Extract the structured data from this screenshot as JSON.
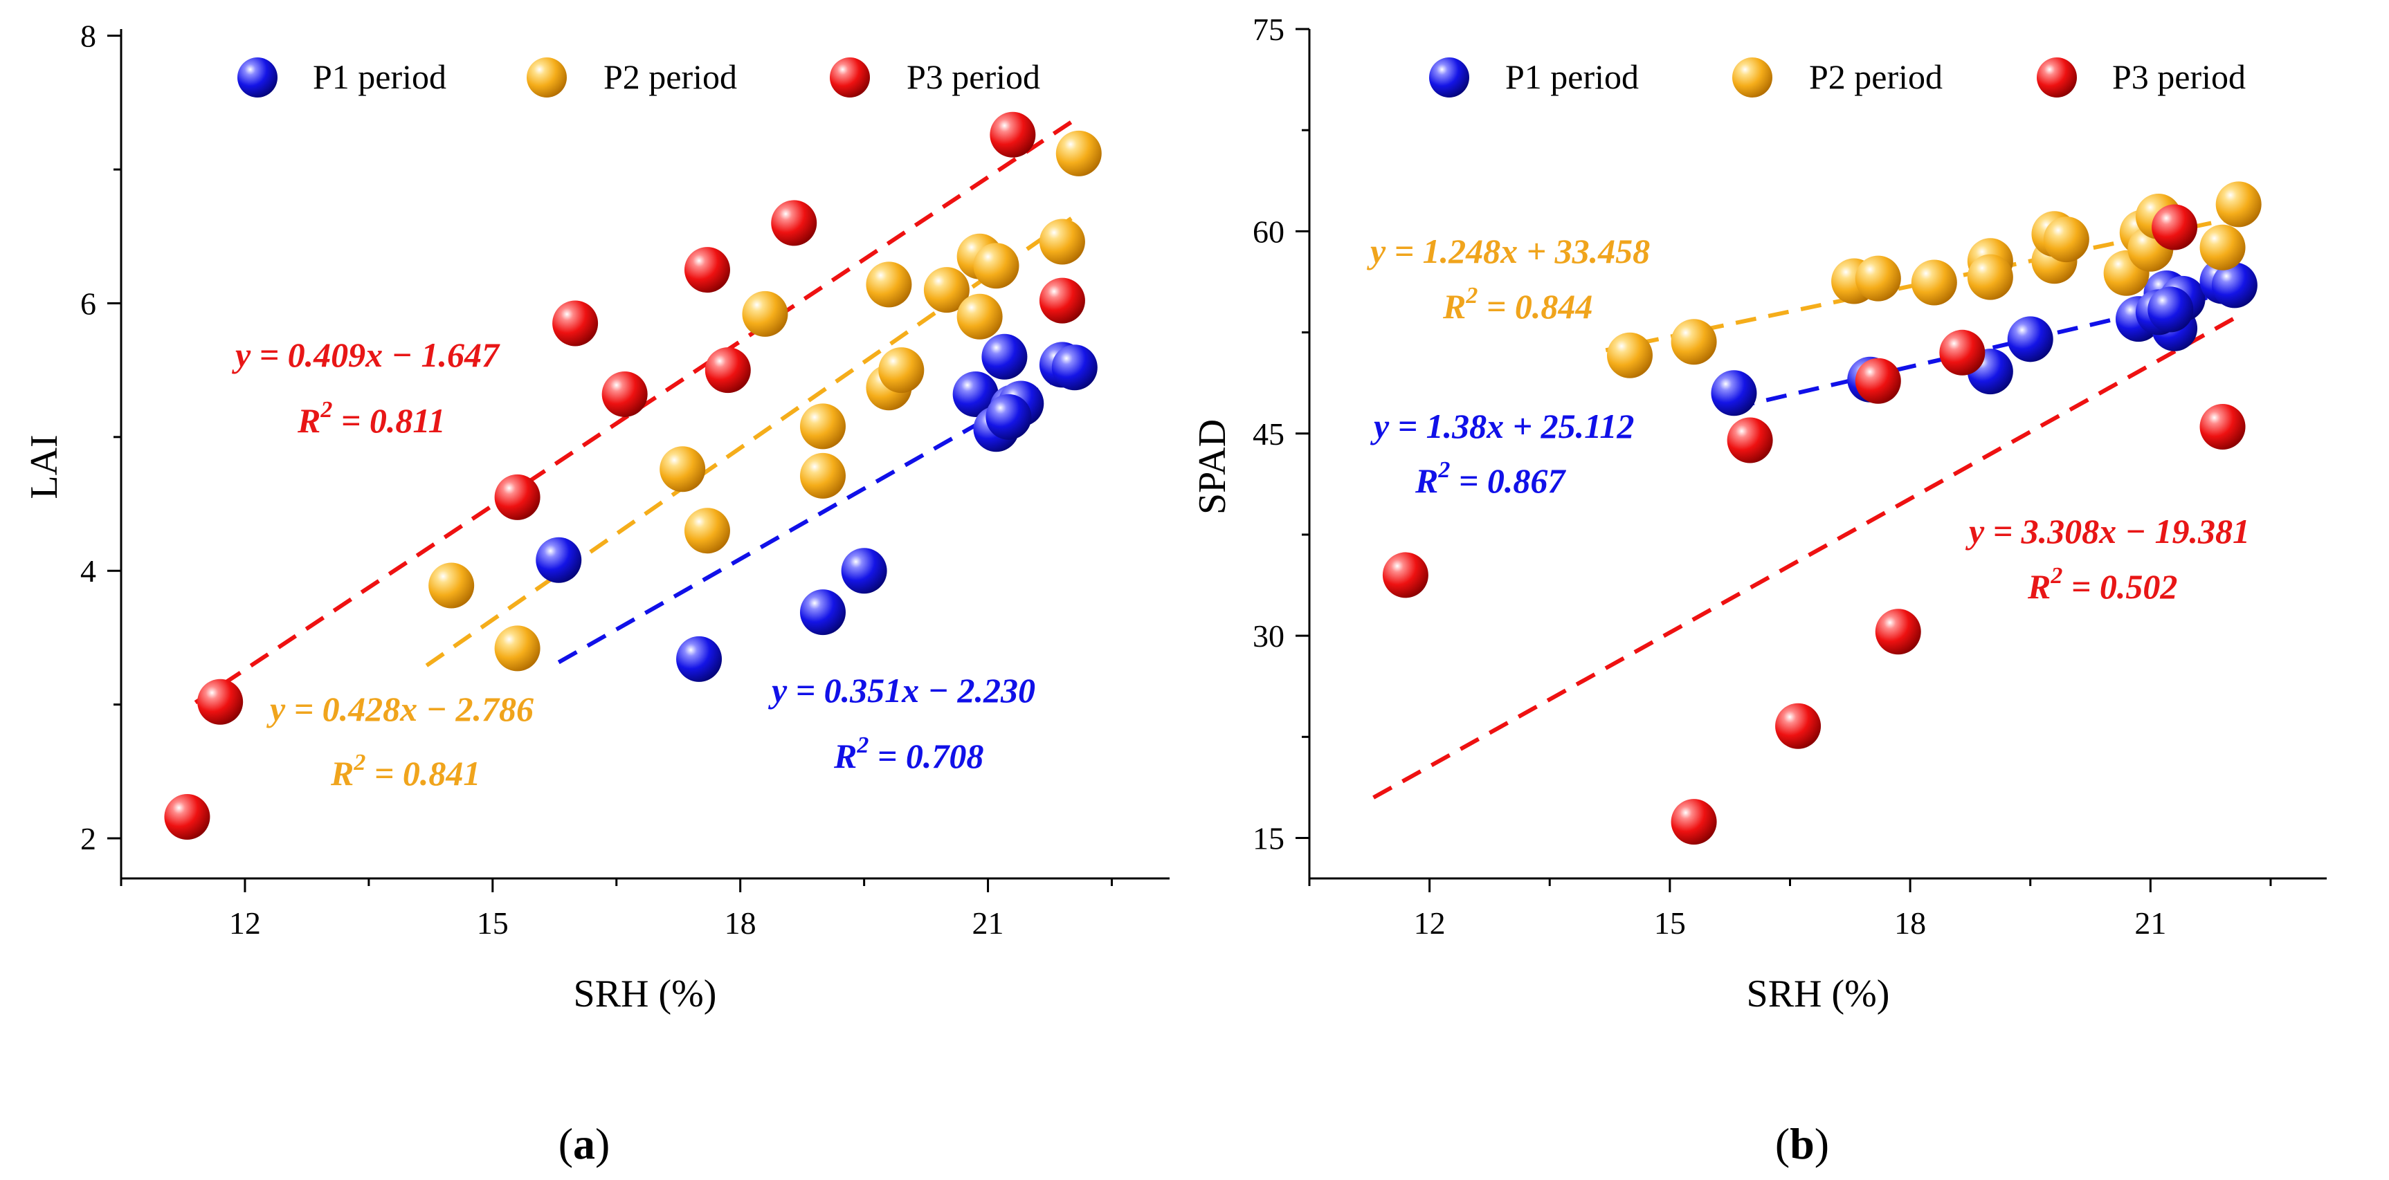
{
  "colors": {
    "P1": "#1010e8",
    "P2": "#f5ad1a",
    "P3": "#ee1111",
    "P1_text": "#1010e8",
    "P2_text": "#f0a41c",
    "P3_text": "#e81616"
  },
  "chart_data": [
    {
      "type": "scatter",
      "panel": "a",
      "panel_label": {
        "open": "(",
        "letter": "a",
        "close": ")"
      },
      "xlabel": "SRH (%)",
      "ylabel": "LAI",
      "xlim": [
        10.5,
        23.2
      ],
      "ylim": [
        1.7,
        8.05
      ],
      "xticks": [
        12,
        15,
        18,
        21
      ],
      "yticks": [
        2,
        4,
        6,
        8
      ],
      "legend": [
        "P1 period",
        "P2 period",
        "P3 period"
      ],
      "series": [
        {
          "name": "P1 period",
          "key": "P1",
          "points": [
            [
              15.8,
              4.08
            ],
            [
              17.5,
              3.34
            ],
            [
              19.0,
              3.69
            ],
            [
              19.5,
              4.0
            ],
            [
              20.85,
              5.32
            ],
            [
              21.2,
              5.6
            ],
            [
              21.3,
              5.22
            ],
            [
              21.1,
              5.06
            ],
            [
              21.4,
              5.25
            ],
            [
              21.25,
              5.15
            ],
            [
              21.9,
              5.54
            ],
            [
              22.05,
              5.52
            ]
          ],
          "fit": {
            "x": [
              15.8,
              22.0
            ],
            "slope": 0.351,
            "intercept": -2.23
          },
          "equation": "y = 0.351x − 2.230",
          "r2_prefix": "R",
          "r2_exp": "2",
          "r2_value": " = 0.708"
        },
        {
          "name": "P2 period",
          "key": "P2",
          "points": [
            [
              14.5,
              3.89
            ],
            [
              15.3,
              3.42
            ],
            [
              17.3,
              4.76
            ],
            [
              17.6,
              4.3
            ],
            [
              18.3,
              5.92
            ],
            [
              19.0,
              5.08
            ],
            [
              19.0,
              4.71
            ],
            [
              19.8,
              5.37
            ],
            [
              19.95,
              5.5
            ],
            [
              19.8,
              6.14
            ],
            [
              20.5,
              6.1
            ],
            [
              20.9,
              6.35
            ],
            [
              20.9,
              5.9
            ],
            [
              21.1,
              6.28
            ],
            [
              21.9,
              6.46
            ],
            [
              22.1,
              7.12
            ]
          ],
          "fit": {
            "x": [
              14.2,
              22.1
            ],
            "slope": 0.428,
            "intercept": -2.786
          },
          "equation": "y = 0.428x − 2.786",
          "r2_prefix": "R",
          "r2_exp": "2",
          "r2_value": " = 0.841"
        },
        {
          "name": "P3 period",
          "key": "P3",
          "points": [
            [
              11.3,
              2.16
            ],
            [
              11.7,
              3.02
            ],
            [
              15.3,
              4.55
            ],
            [
              16.0,
              5.85
            ],
            [
              16.6,
              5.32
            ],
            [
              17.6,
              6.25
            ],
            [
              17.85,
              5.5
            ],
            [
              18.65,
              6.6
            ],
            [
              21.3,
              7.26
            ],
            [
              21.9,
              6.02
            ]
          ],
          "fit": {
            "x": [
              11.4,
              22.1
            ],
            "slope": 0.409,
            "intercept": -1.647
          },
          "equation": "y = 0.409x − 1.647",
          "r2_prefix": "R",
          "r2_exp": "2",
          "r2_value": " = 0.811"
        }
      ]
    },
    {
      "type": "scatter",
      "panel": "b",
      "panel_label": {
        "open": "(",
        "letter": "b",
        "close": ")"
      },
      "xlabel": "SRH (%)",
      "ylabel": "SPAD",
      "xlim": [
        10.5,
        23.2
      ],
      "ylim": [
        12.0,
        75.0
      ],
      "xticks": [
        12,
        15,
        18,
        21
      ],
      "yticks": [
        15,
        30,
        45,
        60,
        75
      ],
      "legend": [
        "P1 period",
        "P2 period",
        "P3 period"
      ],
      "series": [
        {
          "name": "P1 period",
          "key": "P1",
          "points": [
            [
              15.8,
              48.0
            ],
            [
              17.5,
              49.0
            ],
            [
              19.0,
              49.6
            ],
            [
              19.5,
              52.0
            ],
            [
              20.85,
              53.5
            ],
            [
              21.2,
              55.4
            ],
            [
              21.3,
              52.8
            ],
            [
              21.1,
              54.0
            ],
            [
              21.4,
              55.0
            ],
            [
              21.25,
              54.2
            ],
            [
              21.9,
              56.3
            ],
            [
              22.05,
              56.0
            ]
          ],
          "fit": {
            "x": [
              15.8,
              22.0
            ],
            "slope": 1.38,
            "intercept": 25.112
          },
          "equation": "y = 1.38x + 25.112",
          "r2_prefix": "R",
          "r2_exp": "2",
          "r2_value": " = 0.867"
        },
        {
          "name": "P2 period",
          "key": "P2",
          "points": [
            [
              14.5,
              50.8
            ],
            [
              15.3,
              51.8
            ],
            [
              17.3,
              56.3
            ],
            [
              17.6,
              56.5
            ],
            [
              18.3,
              56.2
            ],
            [
              19.0,
              57.8
            ],
            [
              19.0,
              56.6
            ],
            [
              19.8,
              57.8
            ],
            [
              19.8,
              59.8
            ],
            [
              19.95,
              59.4
            ],
            [
              20.7,
              56.9
            ],
            [
              20.9,
              59.9
            ],
            [
              21.0,
              58.7
            ],
            [
              21.1,
              61.1
            ],
            [
              21.9,
              58.8
            ],
            [
              22.1,
              62.0
            ]
          ],
          "fit": {
            "x": [
              14.2,
              22.1
            ],
            "slope": 1.248,
            "intercept": 33.458
          },
          "equation": "y = 1.248x + 33.458",
          "r2_prefix": "R",
          "r2_exp": "2",
          "r2_value": " = 0.844"
        },
        {
          "name": "P3 period",
          "key": "P3",
          "points": [
            [
              11.7,
              34.5
            ],
            [
              15.3,
              16.2
            ],
            [
              16.0,
              44.5
            ],
            [
              16.6,
              23.3
            ],
            [
              17.6,
              48.9
            ],
            [
              17.85,
              30.3
            ],
            [
              18.65,
              51.0
            ],
            [
              21.3,
              60.3
            ],
            [
              21.9,
              45.5
            ]
          ],
          "fit": {
            "x": [
              11.3,
              22.1
            ],
            "slope": 3.308,
            "intercept": -19.381
          },
          "equation": "y = 3.308x − 19.381",
          "r2_prefix": "R",
          "r2_exp": "2",
          "r2_value": " = 0.502"
        }
      ]
    }
  ]
}
